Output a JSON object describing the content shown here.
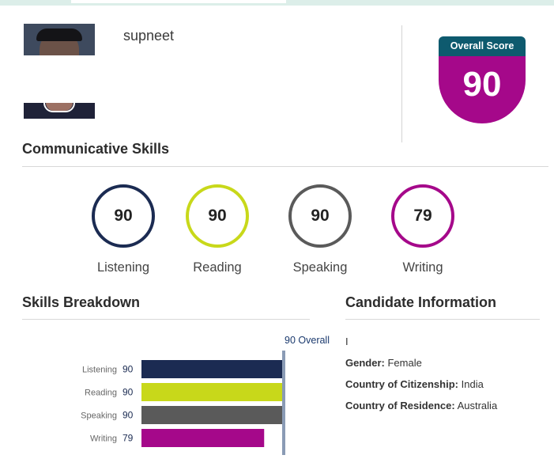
{
  "candidate": {
    "name": "supneet"
  },
  "overall": {
    "header": "Overall Score",
    "value": "90"
  },
  "communicative_skills": {
    "title": "Communicative Skills",
    "skills": [
      {
        "label": "Listening",
        "score": "90",
        "color": "#1b2b52"
      },
      {
        "label": "Reading",
        "score": "90",
        "color": "#c8d81a"
      },
      {
        "label": "Speaking",
        "score": "90",
        "color": "#5a5a5a"
      },
      {
        "label": "Writing",
        "score": "79",
        "color": "#a5088a"
      }
    ]
  },
  "skills_breakdown": {
    "title": "Skills Breakdown",
    "overall_label": "90 Overall"
  },
  "chart_data": {
    "type": "bar",
    "orientation": "horizontal",
    "categories": [
      "Listening",
      "Reading",
      "Speaking",
      "Writing"
    ],
    "values": [
      90,
      90,
      90,
      79
    ],
    "colors": [
      "#1b2b52",
      "#c8d81a",
      "#5a5a5a",
      "#a5088a"
    ],
    "reference_line": {
      "value": 90,
      "label": "90 Overall"
    },
    "xlim": [
      10,
      90
    ]
  },
  "candidate_info": {
    "title": "Candidate Information",
    "first_line": "I",
    "gender_label": "Gender:",
    "gender_value": "Female",
    "citizenship_label": "Country of Citizenship:",
    "citizenship_value": "India",
    "residence_label": "Country of Residence:",
    "residence_value": "Australia"
  }
}
